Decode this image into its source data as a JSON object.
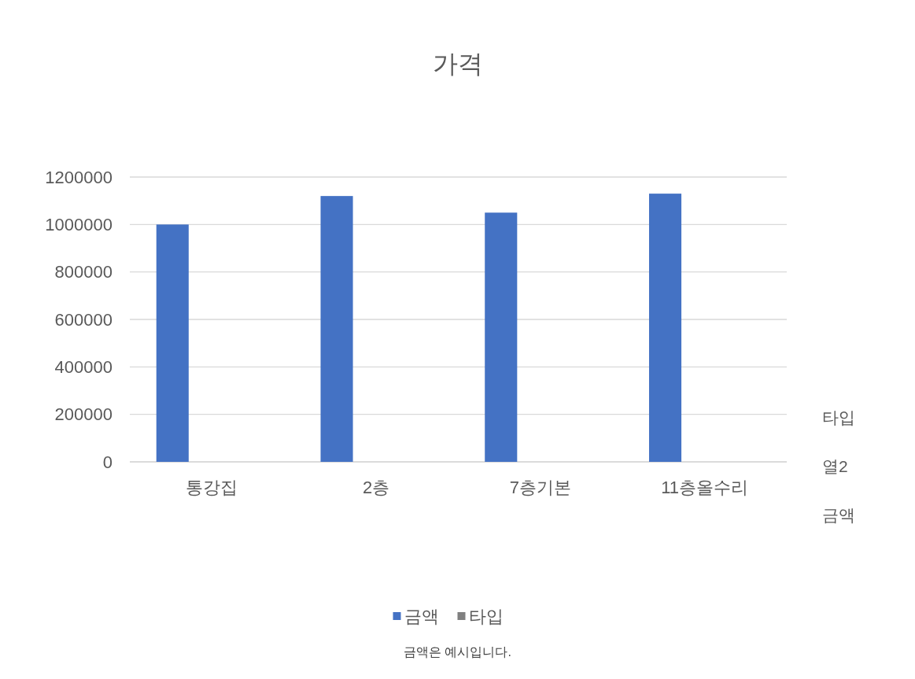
{
  "chart_data": {
    "type": "bar",
    "title": "가격",
    "categories": [
      "통강집",
      "2층",
      "7층기본",
      "11층올수리"
    ],
    "series": [
      {
        "name": "금액",
        "color": "#4472c4",
        "values": [
          1000000,
          1120000,
          1050000,
          1130000
        ]
      },
      {
        "name": "열2",
        "values": [
          null,
          null,
          null,
          null
        ]
      },
      {
        "name": "타입",
        "color": "#808080",
        "values": [
          0,
          0,
          0,
          0
        ]
      }
    ],
    "ylim": [
      0,
      1200000
    ],
    "yticks": [
      0,
      200000,
      400000,
      600000,
      800000,
      1000000,
      1200000
    ],
    "grid": "y",
    "legend": "bottom",
    "annotations": [
      "금액은 예시입니다."
    ]
  }
}
